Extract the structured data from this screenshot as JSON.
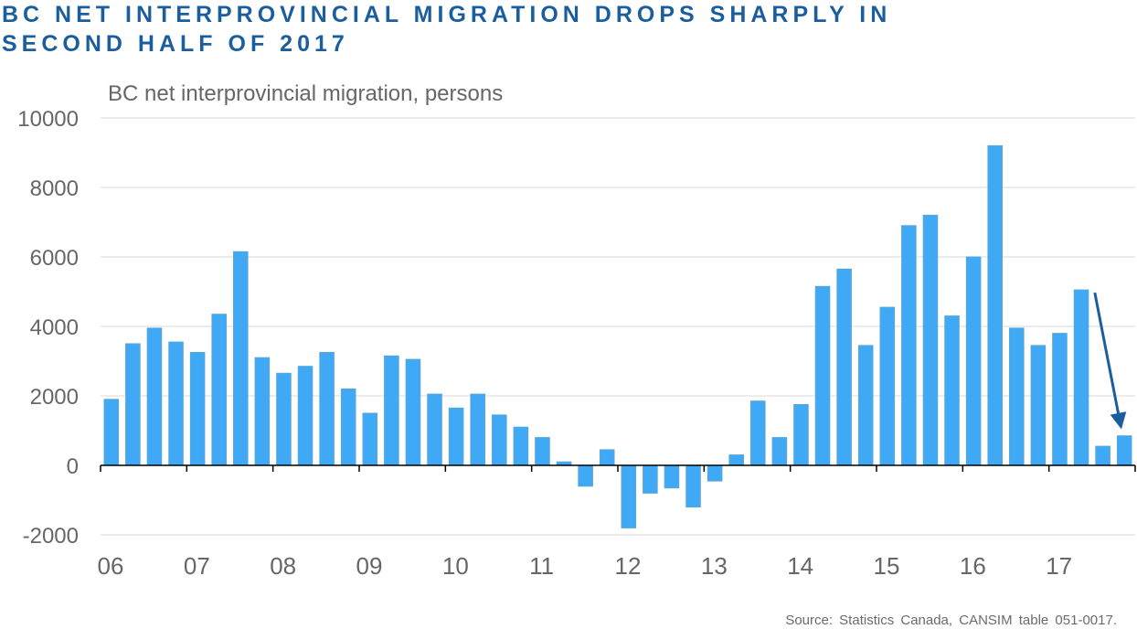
{
  "title_lines": [
    "BC NET INTERPROVINCIAL MIGRATION DROPS SHARPLY IN",
    "SECOND HALF OF 2017"
  ],
  "colors": {
    "title": "#1b5e9e",
    "bar": "#3fa9f5",
    "bar_edge": "#5aa7d6",
    "arrow": "#1b5e9e",
    "grid": "#d9d9d9",
    "axis": "#000000"
  },
  "source": "Source:  Statistics  Canada,  CANSIM  table  051-0017.",
  "chart_data": {
    "type": "bar",
    "title": "BC NET INTERPROVINCIAL MIGRATION DROPS SHARPLY IN SECOND HALF OF 2017",
    "subtitle": "BC net interprovincial migration, persons",
    "xlabel": "",
    "ylabel": "",
    "ylim": [
      -2000,
      10000
    ],
    "yticks": [
      -2000,
      0,
      2000,
      4000,
      6000,
      8000,
      10000
    ],
    "grid": true,
    "x_tick_labels": [
      "06",
      "07",
      "08",
      "09",
      "10",
      "11",
      "12",
      "13",
      "14",
      "15",
      "16",
      "17"
    ],
    "periods_per_label": 4,
    "series": [
      {
        "name": "BC net interprovincial migration",
        "values": [
          1900,
          3500,
          3950,
          3550,
          3250,
          4350,
          6150,
          3100,
          2650,
          2850,
          3250,
          2200,
          1500,
          3150,
          3050,
          2050,
          1650,
          2050,
          1450,
          1100,
          800,
          100,
          -600,
          450,
          -1800,
          -800,
          -650,
          -1200,
          -450,
          300,
          1850,
          800,
          1750,
          5150,
          5650,
          3450,
          4550,
          6900,
          7200,
          4300,
          6000,
          9200,
          3950,
          3450,
          3800,
          5050,
          550,
          850
        ]
      }
    ],
    "annotation": {
      "type": "arrow",
      "from_value": 5050,
      "to_value": 850,
      "description": "arrow pointing to the sharp drop in the second half of 2017"
    }
  }
}
